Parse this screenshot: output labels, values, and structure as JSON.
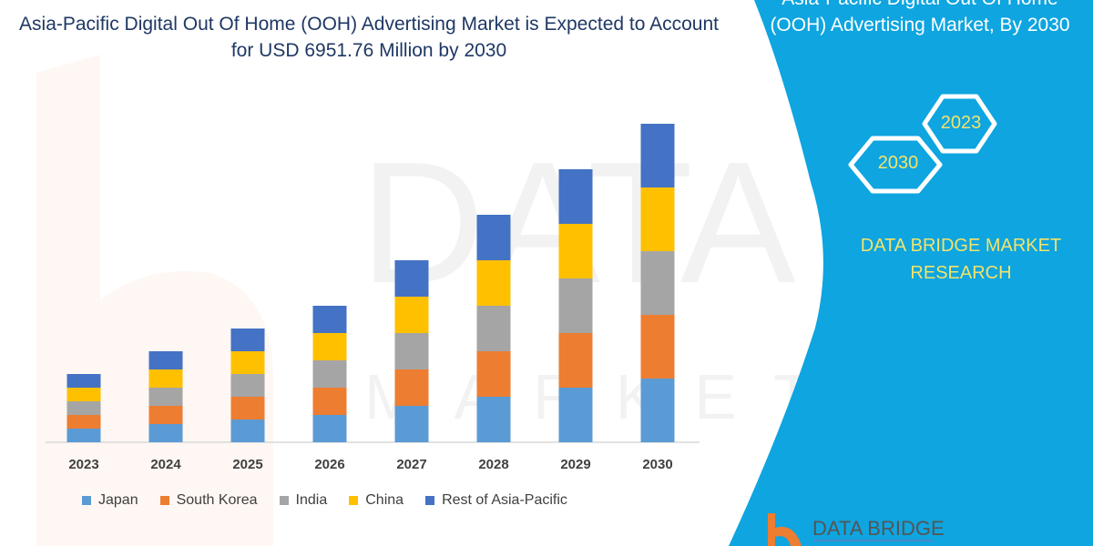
{
  "header": {
    "title": "Asia-Pacific Digital Out Of Home (OOH) Advertising Market is Expected to Account for USD 6951.76 Million by 2030"
  },
  "side_panel": {
    "title_line1": "Asia-Pacific Digital Out Of Home",
    "title_line2": "(OOH) Advertising Market, By 2030",
    "hex_left": "2030",
    "hex_right": "2023",
    "brand_line1": "DATA BRIDGE MARKET",
    "brand_line2": "RESEARCH",
    "logo_text": "DATA BRIDGE",
    "panel_color": "#0ea5e0",
    "brand_text_color": "#f2e36b"
  },
  "watermark": {
    "text": "DATA BRIDGE",
    "subtext": "MARKET RESEARCH"
  },
  "chart_data": {
    "type": "bar",
    "stacked": true,
    "title": "Asia-Pacific Digital Out Of Home (OOH) Advertising Market is Expected to Account for USD 6951.76 Million by 2030",
    "xlabel": "",
    "ylabel": "",
    "y_axis_shown": false,
    "grid": false,
    "legend_position": "bottom",
    "categories": [
      "2023",
      "2024",
      "2025",
      "2026",
      "2027",
      "2028",
      "2029",
      "2030"
    ],
    "series": [
      {
        "name": "Japan",
        "color": "#5b9bd5",
        "values": [
          15,
          20,
          25,
          30,
          40,
          50,
          60,
          70
        ]
      },
      {
        "name": "South Korea",
        "color": "#ed7d31",
        "values": [
          15,
          20,
          25,
          30,
          40,
          50,
          60,
          70
        ]
      },
      {
        "name": "India",
        "color": "#a5a5a5",
        "values": [
          15,
          20,
          25,
          30,
          40,
          50,
          60,
          70
        ]
      },
      {
        "name": "China",
        "color": "#ffc000",
        "values": [
          15,
          20,
          25,
          30,
          40,
          50,
          60,
          70
        ]
      },
      {
        "name": "Rest of Asia-Pacific",
        "color": "#4472c4",
        "values": [
          15,
          20,
          25,
          30,
          40,
          50,
          60,
          70
        ]
      }
    ]
  }
}
